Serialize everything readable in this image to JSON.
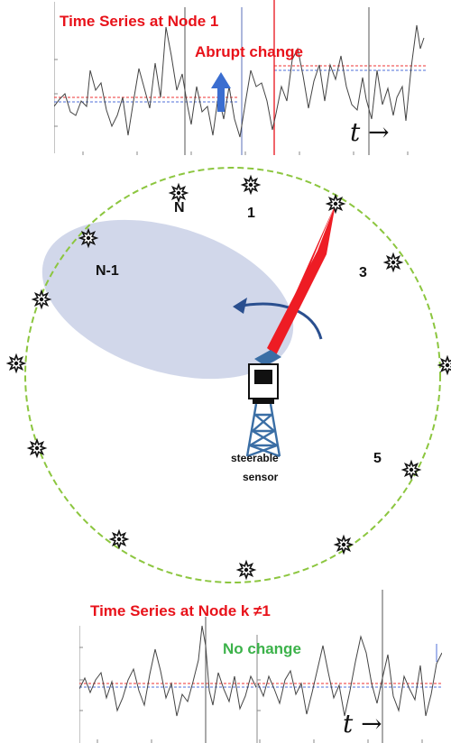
{
  "top_panel": {
    "title": "Time Series at Node 1",
    "change_label": "Abrupt change",
    "time_axis": "t →"
  },
  "diagram": {
    "node_labels": {
      "n": "N",
      "one": "1",
      "three": "3",
      "n_minus_1": "N-1",
      "five": "5"
    },
    "sensor_label_line1": "steerable",
    "sensor_label_line2": "sensor",
    "colors": {
      "ring": "#8cc63f",
      "beam": "#ee1c24",
      "coverage": "#c9d0e6",
      "rotate_arrow": "#2a4f8f",
      "tower": "#3a6ea5"
    }
  },
  "bottom_panel": {
    "title": "Time Series at Node k  ≠1",
    "status_label": "No change",
    "time_axis": "t →"
  }
}
